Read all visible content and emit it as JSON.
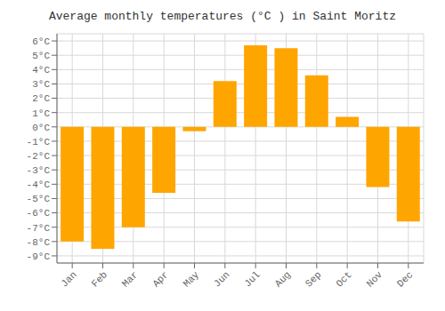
{
  "chart_data": {
    "type": "bar",
    "title": "Average monthly temperatures (°C ) in Saint Moritz",
    "categories": [
      "Jan",
      "Feb",
      "Mar",
      "Apr",
      "May",
      "Jun",
      "Jul",
      "Aug",
      "Sep",
      "Oct",
      "Nov",
      "Dec"
    ],
    "values": [
      -8,
      -8.5,
      -7,
      -4.6,
      -0.3,
      3.2,
      5.7,
      5.5,
      3.6,
      0.7,
      -4.2,
      -6.6
    ],
    "color": "#FFA500",
    "ylim": [
      -9.5,
      6.5
    ],
    "yticks": [
      {
        "value": -9,
        "label": "-9°C"
      },
      {
        "value": -8,
        "label": "-8°C"
      },
      {
        "value": -7,
        "label": "-7°C"
      },
      {
        "value": -6,
        "label": "-6°C"
      },
      {
        "value": -5,
        "label": "-5°C"
      },
      {
        "value": -4,
        "label": "-4°C"
      },
      {
        "value": -3,
        "label": "-3°C"
      },
      {
        "value": -2,
        "label": "-2°C"
      },
      {
        "value": -1,
        "label": "-1°C"
      },
      {
        "value": 0,
        "label": "0°C"
      },
      {
        "value": 1,
        "label": "1°C"
      },
      {
        "value": 2,
        "label": "2°C"
      },
      {
        "value": 3,
        "label": "3°C"
      },
      {
        "value": 4,
        "label": "4°C"
      },
      {
        "value": 5,
        "label": "5°C"
      },
      {
        "value": 6,
        "label": "6°C"
      }
    ],
    "grid": true
  }
}
